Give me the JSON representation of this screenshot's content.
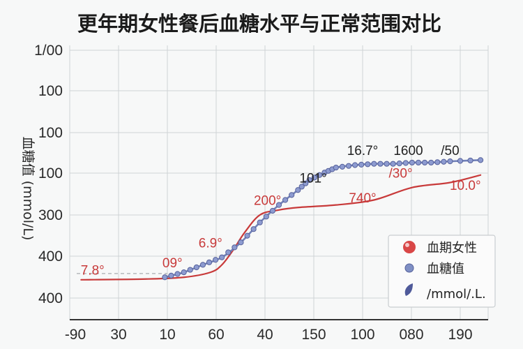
{
  "chart_data": {
    "type": "line",
    "title": "更年期女性餐后血糖水平与正常范围对比",
    "ylabel": "血糖值 (mmol/L)",
    "xlim": [
      0,
      110
    ],
    "ylim": [
      0,
      110
    ],
    "x_tick_labels": [
      "-90",
      "30",
      "10",
      "60",
      "40",
      "150",
      "100",
      "080",
      "190"
    ],
    "y_tick_labels": [
      "1/00",
      "100",
      "100",
      "100",
      "300",
      "400",
      "400"
    ],
    "grid": true,
    "series": [
      {
        "name": "血期女性",
        "color": "#c83a3a",
        "marker": "none",
        "points": [
          [
            3,
            16
          ],
          [
            20,
            16.3
          ],
          [
            30,
            17
          ],
          [
            37,
            19
          ],
          [
            40,
            22
          ],
          [
            43,
            28
          ],
          [
            46,
            35
          ],
          [
            50,
            42
          ],
          [
            55,
            44
          ],
          [
            60,
            45
          ],
          [
            70,
            46
          ],
          [
            80,
            48
          ],
          [
            90,
            53
          ],
          [
            100,
            55
          ],
          [
            108,
            58
          ]
        ]
      },
      {
        "name": "血糖值",
        "color": "#7080b8",
        "marker": "circle",
        "points": [
          [
            25,
            17
          ],
          [
            30,
            19
          ],
          [
            35,
            22
          ],
          [
            40,
            25
          ],
          [
            45,
            31
          ],
          [
            50,
            39
          ],
          [
            55,
            46
          ],
          [
            60,
            52
          ],
          [
            63,
            56
          ],
          [
            67,
            59
          ],
          [
            70,
            61
          ],
          [
            75,
            62
          ],
          [
            80,
            62.5
          ],
          [
            85,
            62.5
          ],
          [
            90,
            63
          ],
          [
            95,
            63
          ],
          [
            100,
            63.5
          ],
          [
            108,
            64
          ]
        ]
      }
    ],
    "annotations": [
      {
        "text": "7.8°",
        "x": 6,
        "y": 18,
        "color": "#c83a3a"
      },
      {
        "text": "09°",
        "x": 27,
        "y": 21,
        "color": "#c83a3a"
      },
      {
        "text": "6.9°",
        "x": 37,
        "y": 29,
        "color": "#c83a3a"
      },
      {
        "text": "200°",
        "x": 52,
        "y": 46,
        "color": "#c83a3a"
      },
      {
        "text": "101°",
        "x": 64,
        "y": 55,
        "color": "#222222"
      },
      {
        "text": "740°",
        "x": 77,
        "y": 47,
        "color": "#c83a3a"
      },
      {
        "text": "16.7°",
        "x": 77,
        "y": 66,
        "color": "#222222"
      },
      {
        "text": "1600",
        "x": 89,
        "y": 66,
        "color": "#222222"
      },
      {
        "text": "/50",
        "x": 100,
        "y": 66,
        "color": "#222222"
      },
      {
        "text": "/30°",
        "x": 87,
        "y": 57,
        "color": "#c83a3a"
      },
      {
        "text": "10.0°",
        "x": 104,
        "y": 52,
        "color": "#c83a3a"
      }
    ],
    "legend": {
      "position": "bottom-right",
      "items": [
        {
          "label": "血期女性",
          "icon": "red-ball-icon"
        },
        {
          "label": "血糖值",
          "icon": "blue-dot-icon"
        },
        {
          "label": "/mmol/.L.",
          "icon": "blue-leaf-icon"
        }
      ]
    },
    "reference_line_y": 18.5,
    "colors": {
      "background": "#f7f8f8",
      "grid": "#cfd3d6",
      "axis": "#333333",
      "red": "#c83a3a",
      "blue": "#7080b8"
    }
  }
}
